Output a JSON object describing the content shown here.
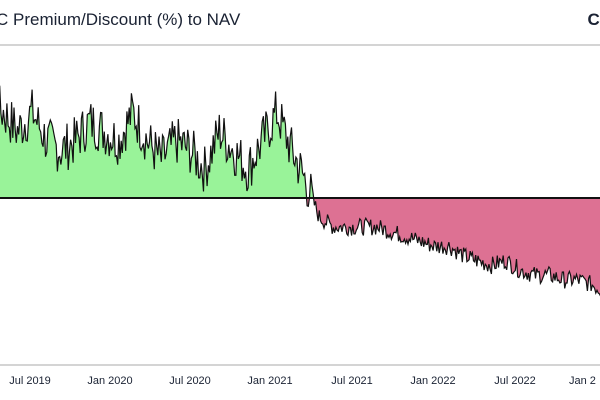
{
  "title": "C Premium/Discount (%) to NAV",
  "brand": "CO",
  "colors": {
    "premium_fill": "#99f399",
    "discount_fill": "#dd7193",
    "line": "#111111",
    "zero_line": "#111111",
    "frame": "#aaaaaa"
  },
  "chart_data": {
    "type": "area",
    "title": "C Premium/Discount (%) to NAV",
    "xlabel": "",
    "ylabel": "",
    "grid": false,
    "legend": "none",
    "x_tick_labels": [
      "Jul 2019",
      "Jan 2020",
      "Jul 2020",
      "Jan 2021",
      "Jul 2021",
      "Jan 2022",
      "Jul 2022",
      "Jan 2"
    ],
    "ylim": [
      -16,
      15
    ],
    "series": [
      {
        "values_note_omitted": true,
        "x": [
          "2019-03",
          "2019-04",
          "2019-05",
          "2019-06",
          "2019-07",
          "2019-08",
          "2019-09",
          "2019-10",
          "2019-11",
          "2019-12",
          "2020-01",
          "2020-02",
          "2020-03",
          "2020-04",
          "2020-05",
          "2020-06",
          "2020-07",
          "2020-08",
          "2020-09",
          "2020-10",
          "2020-11",
          "2020-12",
          "2021-01",
          "2021-02",
          "2021-03",
          "2021-04",
          "2021-05",
          "2021-06",
          "2021-07",
          "2021-08",
          "2021-09",
          "2021-10",
          "2021-11",
          "2021-12",
          "2022-01",
          "2022-02",
          "2022-03",
          "2022-04",
          "2022-05",
          "2022-06",
          "2022-07",
          "2022-08",
          "2022-09",
          "2022-10",
          "2022-11",
          "2022-12",
          "2023-01"
        ],
        "y": [
          6,
          9,
          10,
          9,
          7,
          9,
          6,
          5,
          6,
          8,
          7,
          6,
          9,
          6,
          4,
          6,
          5,
          3,
          7,
          5,
          3,
          6,
          9,
          5,
          2,
          -2,
          -3,
          -3,
          -3,
          -3,
          -3.5,
          -4,
          -4.5,
          -5,
          -5,
          -6,
          -6.5,
          -7,
          -6.5,
          -7.5,
          -8,
          -8,
          -8.5,
          -8.5,
          -9,
          -10,
          -11
        ]
      }
    ]
  }
}
